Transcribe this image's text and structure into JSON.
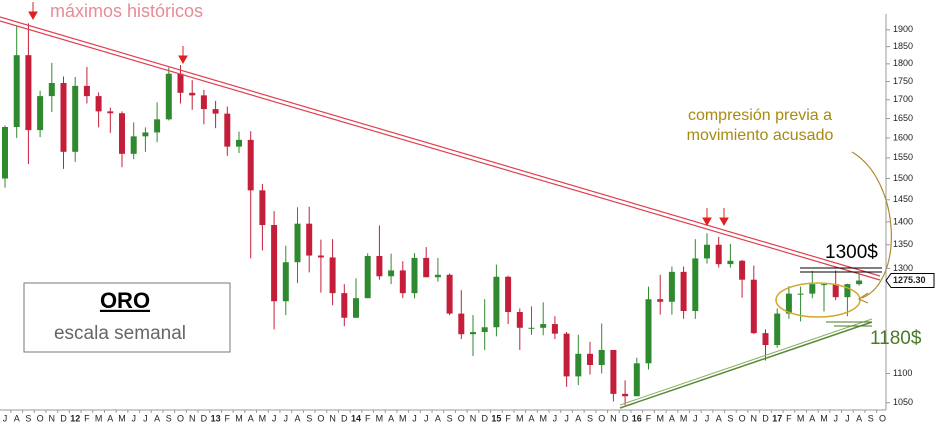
{
  "chart_data": {
    "type": "candlestick",
    "title": "máximos históricos",
    "annotation": "compresión previa a movimiento acusado",
    "level_high": "1300$",
    "level_low": "1180$",
    "box_title": "ORO",
    "box_subtitle": "escala semanal",
    "last_label": "1275.30",
    "log_scale": true,
    "up_color": "#2f8a2f",
    "down_color": "#c41e3a",
    "categories": [
      "J",
      "A",
      "S",
      "O",
      "N",
      "D",
      "12",
      "F",
      "M",
      "A",
      "M",
      "J",
      "J",
      "A",
      "S",
      "O",
      "N",
      "D",
      "13",
      "F",
      "M",
      "A",
      "M",
      "J",
      "J",
      "A",
      "S",
      "O",
      "N",
      "D",
      "14",
      "F",
      "M",
      "A",
      "M",
      "J",
      "J",
      "A",
      "S",
      "O",
      "N",
      "D",
      "15",
      "F",
      "M",
      "A",
      "M",
      "J",
      "J",
      "A",
      "S",
      "O",
      "N",
      "D",
      "16",
      "F",
      "M",
      "A",
      "M",
      "J",
      "J",
      "A",
      "S",
      "O",
      "N",
      "D",
      "17",
      "F",
      "M",
      "A",
      "M",
      "J",
      "J",
      "A",
      "S",
      "O"
    ],
    "open": [
      1500,
      1628,
      1825,
      1620,
      1710,
      1746,
      1565,
      1738,
      1710,
      1669,
      1664,
      1560,
      1604,
      1614,
      1648,
      1772,
      1719,
      1712,
      1675,
      1663,
      1578,
      1595,
      1472,
      1393,
      1234,
      1313,
      1396,
      1327,
      1323,
      1250,
      1202,
      1240,
      1326,
      1284,
      1296,
      1250,
      1322,
      1282,
      1287,
      1210,
      1171,
      1175,
      1184,
      1283,
      1213,
      1183,
      1183,
      1190,
      1172,
      1095,
      1135,
      1115,
      1142,
      1065,
      1061,
      1118,
      1238,
      1233,
      1293,
      1215,
      1321,
      1350,
      1309,
      1316,
      1277,
      1173,
      1151,
      1210,
      1249,
      1249,
      1268,
      1268,
      1242,
      1268,
      null,
      null
    ],
    "high": [
      1632,
      1911,
      1920,
      1725,
      1803,
      1764,
      1763,
      1791,
      1720,
      1679,
      1669,
      1640,
      1627,
      1693,
      1790,
      1796,
      1754,
      1727,
      1697,
      1682,
      1616,
      1617,
      1487,
      1424,
      1348,
      1433,
      1434,
      1361,
      1362,
      1268,
      1280,
      1332,
      1392,
      1331,
      1315,
      1332,
      1345,
      1322,
      1290,
      1256,
      1207,
      1238,
      1308,
      1285,
      1220,
      1224,
      1232,
      1205,
      1175,
      1170,
      1157,
      1191,
      1142,
      1088,
      1128,
      1263,
      1287,
      1304,
      1304,
      1362,
      1375,
      1367,
      1352,
      1318,
      1306,
      1180,
      1220,
      1264,
      1263,
      1295,
      1270,
      1296,
      1269,
      1290,
      null,
      null
    ],
    "low": [
      1478,
      1600,
      1535,
      1602,
      1667,
      1523,
      1540,
      1690,
      1627,
      1613,
      1527,
      1547,
      1565,
      1589,
      1645,
      1690,
      1673,
      1635,
      1625,
      1555,
      1562,
      1321,
      1338,
      1180,
      1207,
      1270,
      1292,
      1251,
      1226,
      1186,
      1202,
      1240,
      1277,
      1268,
      1240,
      1240,
      1282,
      1273,
      1207,
      1162,
      1131,
      1142,
      1167,
      1190,
      1142,
      1170,
      1169,
      1162,
      1077,
      1080,
      1098,
      1100,
      1052,
      1046,
      1061,
      1107,
      1208,
      1208,
      1200,
      1200,
      1310,
      1302,
      1302,
      1241,
      1171,
      1123,
      1146,
      1200,
      1195,
      1240,
      1214,
      1236,
      1205,
      1265,
      null,
      null
    ],
    "close": [
      1628,
      1825,
      1620,
      1710,
      1746,
      1565,
      1738,
      1710,
      1669,
      1664,
      1560,
      1604,
      1614,
      1648,
      1772,
      1719,
      1712,
      1675,
      1663,
      1578,
      1595,
      1472,
      1393,
      1234,
      1313,
      1396,
      1327,
      1323,
      1250,
      1202,
      1240,
      1326,
      1284,
      1296,
      1250,
      1322,
      1282,
      1287,
      1210,
      1171,
      1175,
      1184,
      1283,
      1213,
      1183,
      1183,
      1190,
      1172,
      1095,
      1135,
      1115,
      1142,
      1065,
      1061,
      1118,
      1238,
      1233,
      1293,
      1215,
      1321,
      1350,
      1309,
      1316,
      1277,
      1173,
      1151,
      1210,
      1249,
      1249,
      1268,
      1268,
      1242,
      1268,
      1275.3,
      null,
      null
    ],
    "ylim": [
      1038,
      1930
    ],
    "yticks": [
      1050,
      1100,
      1300,
      1350,
      1400,
      1450,
      1500,
      1550,
      1600,
      1650,
      1700,
      1750,
      1800,
      1850,
      1900
    ]
  }
}
